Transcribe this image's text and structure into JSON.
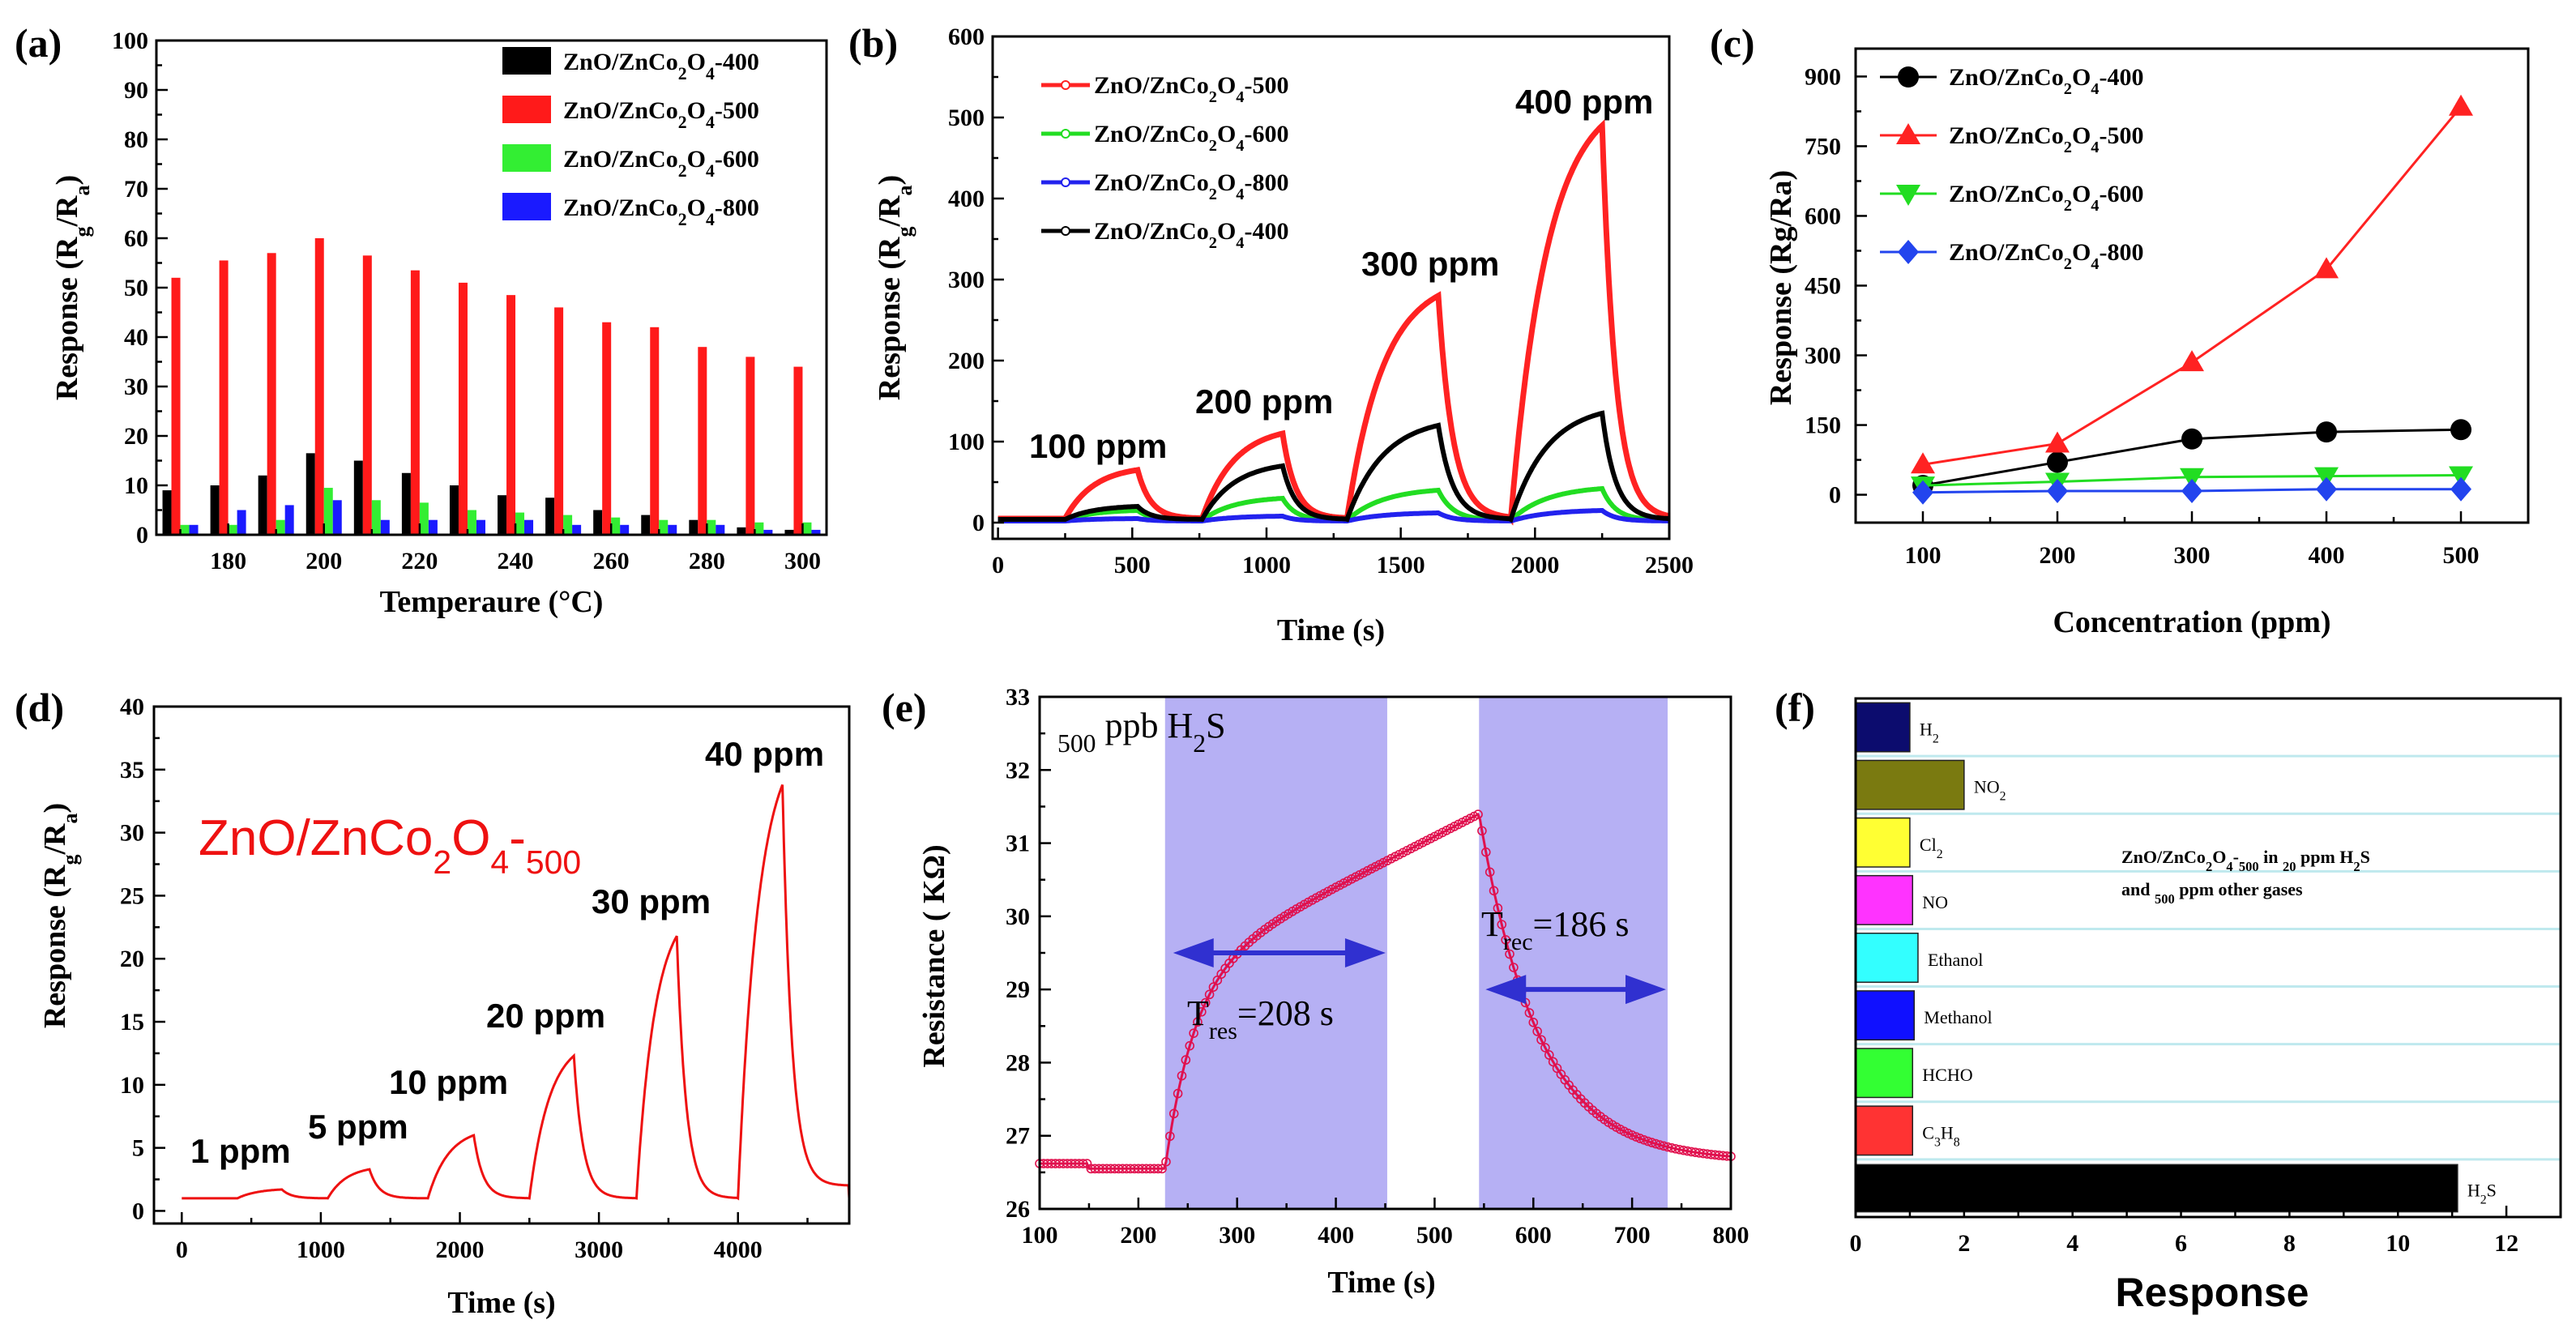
{
  "chart_data": [
    {
      "id": "a",
      "type": "bar",
      "panel_label": "(a)",
      "xlabel": "Temperaure (°C)",
      "ylabel": "Response (Rg/Ra)",
      "xlim": [
        165,
        305
      ],
      "ylim": [
        0,
        100
      ],
      "xticks": [
        180,
        200,
        220,
        240,
        260,
        280,
        300
      ],
      "yticks": [
        0,
        10,
        20,
        30,
        40,
        50,
        60,
        70,
        80,
        90,
        100
      ],
      "categories": [
        170,
        180,
        190,
        200,
        210,
        220,
        230,
        240,
        250,
        260,
        270,
        280,
        290,
        300
      ],
      "series": [
        {
          "name": "ZnO/ZnCo2O4-400",
          "color": "#000000",
          "values": [
            9,
            10,
            12,
            16.5,
            15,
            12.5,
            10,
            8,
            7.5,
            5,
            4,
            3,
            1.5,
            1
          ]
        },
        {
          "name": "ZnO/ZnCo2O4-500",
          "color": "#ff1a1a",
          "values": [
            52,
            55.5,
            57,
            60,
            56.5,
            53.5,
            51,
            48.5,
            46,
            43,
            42,
            38,
            36,
            34
          ]
        },
        {
          "name": "ZnO/ZnCo2O4-600",
          "color": "#33ee33",
          "values": [
            2,
            2,
            3,
            9.5,
            7,
            6.5,
            5,
            4.5,
            4,
            3.5,
            3,
            3,
            2.5,
            2.5
          ]
        },
        {
          "name": "ZnO/ZnCo2O4-800",
          "color": "#1a1aff",
          "values": [
            2,
            5,
            6,
            7,
            3,
            3,
            3,
            3,
            2,
            2,
            2,
            2,
            1,
            1
          ]
        }
      ]
    },
    {
      "id": "b",
      "type": "line",
      "panel_label": "(b)",
      "xlabel": "Time (s)",
      "ylabel": "Response (Rg/Ra)",
      "xlim": [
        -20,
        2500
      ],
      "ylim": [
        -20,
        600
      ],
      "xticks": [
        0,
        500,
        1000,
        1500,
        2000,
        2500
      ],
      "yticks": [
        0,
        100,
        200,
        300,
        400,
        500,
        600
      ],
      "annotations": [
        "100 ppm",
        "200 ppm",
        "300 ppm",
        "400 ppm"
      ],
      "cycles": [
        {
          "on": 250,
          "off": 520,
          "end": 760
        },
        {
          "on": 760,
          "off": 1060,
          "end": 1300
        },
        {
          "on": 1300,
          "off": 1640,
          "end": 1910
        },
        {
          "on": 1910,
          "off": 2250,
          "end": 2500
        }
      ],
      "series": [
        {
          "name": "ZnO/ZnCo2O4-500",
          "color": "#ff2222",
          "baseline": 5,
          "peaks": [
            65,
            110,
            280,
            490
          ]
        },
        {
          "name": "ZnO/ZnCo2O4-600",
          "color": "#22dd22",
          "baseline": 3,
          "peaks": [
            15,
            30,
            40,
            42
          ]
        },
        {
          "name": "ZnO/ZnCo2O4-800",
          "color": "#2222ee",
          "baseline": 2,
          "peaks": [
            5,
            8,
            12,
            15
          ]
        },
        {
          "name": "ZnO/ZnCo2O4-400",
          "color": "#000000",
          "baseline": 4,
          "peaks": [
            20,
            70,
            120,
            135
          ]
        }
      ]
    },
    {
      "id": "c",
      "type": "line",
      "panel_label": "(c)",
      "xlabel": "Concentration (ppm)",
      "ylabel": "Response (Rg/Ra)",
      "xlim": [
        50,
        550
      ],
      "ylim": [
        -60,
        960
      ],
      "xticks": [
        100,
        200,
        300,
        400,
        500
      ],
      "yticks": [
        0,
        150,
        300,
        450,
        600,
        750,
        900
      ],
      "x": [
        100,
        200,
        300,
        400,
        500
      ],
      "series": [
        {
          "name": "ZnO/ZnCo2O4-400",
          "color": "#000000",
          "marker": "circle",
          "values": [
            20,
            70,
            120,
            135,
            140
          ]
        },
        {
          "name": "ZnO/ZnCo2O4-500",
          "color": "#ff2222",
          "marker": "triangle-up",
          "values": [
            65,
            110,
            285,
            485,
            835
          ]
        },
        {
          "name": "ZnO/ZnCo2O4-600",
          "color": "#22dd22",
          "marker": "triangle-down",
          "values": [
            20,
            28,
            38,
            40,
            42
          ]
        },
        {
          "name": "ZnO/ZnCo2O4-800",
          "color": "#2244ee",
          "marker": "diamond",
          "values": [
            5,
            8,
            8,
            12,
            12
          ]
        }
      ]
    },
    {
      "id": "d",
      "type": "line",
      "panel_label": "(d)",
      "xlabel": "Time (s)",
      "ylabel": "Response (Rg/Ra)",
      "xlim": [
        -200,
        4800
      ],
      "ylim": [
        -1,
        40
      ],
      "xticks": [
        0,
        1000,
        2000,
        3000,
        4000
      ],
      "yticks": [
        0,
        5,
        10,
        15,
        20,
        25,
        30,
        35,
        40
      ],
      "annotations": [
        "1 ppm",
        "5 ppm",
        "10 ppm",
        "20 ppm",
        "30 ppm",
        "40 ppm"
      ],
      "series_title": "ZnO/ZnCo2O4-500",
      "series": [
        {
          "name": "ZnO/ZnCo2O4-500",
          "color": "#ee1111",
          "baseline": 1,
          "cycles": [
            {
              "on": 400,
              "off": 720,
              "peak": 1.7
            },
            {
              "on": 1050,
              "off": 1350,
              "peak": 3.3
            },
            {
              "on": 1770,
              "off": 2100,
              "peak": 6
            },
            {
              "on": 2500,
              "off": 2820,
              "peak": 12.3
            },
            {
              "on": 3270,
              "off": 3560,
              "peak": 21.8
            },
            {
              "on": 4000,
              "off": 4320,
              "peak": 33.8
            }
          ]
        }
      ]
    },
    {
      "id": "e",
      "type": "scatter",
      "panel_label": "(e)",
      "xlabel": "Time (s)",
      "ylabel": "Resistance ( KΩ)",
      "xlim": [
        100,
        800
      ],
      "ylim": [
        26,
        33
      ],
      "xticks": [
        100,
        200,
        300,
        400,
        500,
        600,
        700,
        800
      ],
      "yticks": [
        26,
        27,
        28,
        29,
        30,
        31,
        32,
        33
      ],
      "title": "500 ppb H2S",
      "response_time": "=208 s",
      "recovery_time": "=186 s",
      "response_subscript": "res",
      "recovery_subscript": "rec",
      "shaded_regions": [
        [
          227,
          452
        ],
        [
          545,
          736
        ]
      ],
      "gas_on": 227,
      "gas_off": 545,
      "baseline": 26.55,
      "r_initial": 26.62,
      "r_max": 31.4,
      "r_end": 26.65,
      "color": "#e0114e"
    },
    {
      "id": "f",
      "type": "bar",
      "orientation": "horizontal",
      "panel_label": "(f)",
      "xlabel": "Response",
      "ylabel": "",
      "xlim": [
        0,
        13
      ],
      "xticks": [
        0,
        2,
        4,
        6,
        8,
        10,
        12
      ],
      "note_line1": "ZnO/ZnCo2O4-500 in 20 ppm H2S",
      "note_line2": "and 500 ppm other gases",
      "categories": [
        "H2",
        "NO2",
        "Cl2",
        "NO",
        "Ethanol",
        "Methanol",
        "HCHO",
        "C3H8",
        "H2S"
      ],
      "values": [
        1.0,
        2.0,
        1.0,
        1.05,
        1.15,
        1.08,
        1.05,
        1.05,
        11.1
      ],
      "colors": [
        "#0c0c6e",
        "#7a7a10",
        "#ffff33",
        "#ff33ff",
        "#33ffff",
        "#1010ff",
        "#33ff33",
        "#ff3333",
        "#000000"
      ]
    }
  ]
}
